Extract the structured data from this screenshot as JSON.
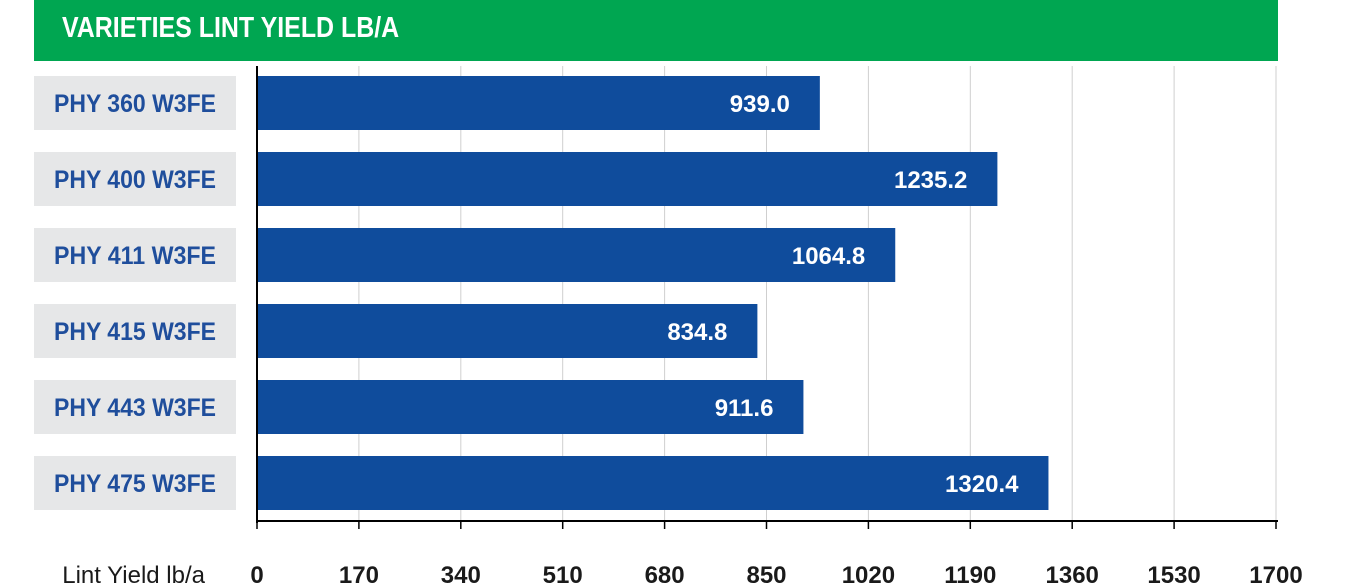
{
  "chart_data": {
    "type": "bar",
    "orientation": "horizontal",
    "title": "VARIETIES LINT YIELD LB/A",
    "xlabel": "Lint Yield lb/a",
    "categories": [
      "PHY 360 W3FE",
      "PHY 400 W3FE",
      "PHY 411 W3FE",
      "PHY 415 W3FE",
      "PHY 443 W3FE",
      "PHY 475 W3FE"
    ],
    "values": [
      939.0,
      1235.2,
      1064.8,
      834.8,
      911.6,
      1320.4
    ],
    "value_labels": [
      "939.0",
      "1235.2",
      "1064.8",
      "834.8",
      "911.6",
      "1320.4"
    ],
    "xlim": [
      0,
      1700
    ],
    "ticks": [
      "0",
      "170",
      "340",
      "510",
      "680",
      "850",
      "1020",
      "1190",
      "1360",
      "1530",
      "1700"
    ],
    "grid": true,
    "colors": {
      "title_bg": "#00a651",
      "bar": "#0f4c9c",
      "label_bg": "#e6e7e8",
      "label_text": "#1f4e9c",
      "grid": "#cfcfcf"
    }
  }
}
